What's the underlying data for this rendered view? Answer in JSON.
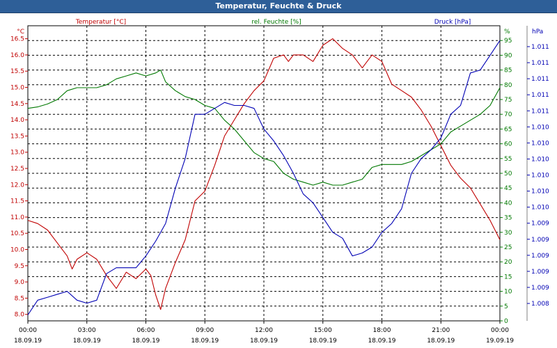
{
  "window": {
    "title": "Temperatur, Feuchte & Druck"
  },
  "colors": {
    "temperature": "#c00000",
    "humidity": "#007800",
    "pressure": "#0000b4",
    "title_bg": "#2e5f98"
  },
  "chart_data": {
    "type": "line",
    "title": "Temperatur, Feuchte & Druck",
    "grid": true,
    "x_ticks": [
      {
        "time": "00:00",
        "date": "18.09.19"
      },
      {
        "time": "03:00",
        "date": "18.09.19"
      },
      {
        "time": "06:00",
        "date": "18.09.19"
      },
      {
        "time": "09:00",
        "date": "18.09.19"
      },
      {
        "time": "12:00",
        "date": "18.09.19"
      },
      {
        "time": "15:00",
        "date": "18.09.19"
      },
      {
        "time": "18:00",
        "date": "18.09.19"
      },
      {
        "time": "21:00",
        "date": "18.09.19"
      },
      {
        "time": "00:00",
        "date": "19.09.19"
      }
    ],
    "xlim": [
      0,
      24
    ],
    "axes": {
      "temperature": {
        "label": "Temperatur [°C]",
        "unit": "°C",
        "ylim": [
          7.8,
          16.9
        ],
        "ticks": [
          "8.0",
          "8.5",
          "9.0",
          "9.5",
          "10.0",
          "10.5",
          "11.0",
          "11.5",
          "12.0",
          "12.5",
          "13.0",
          "13.5",
          "14.0",
          "14.5",
          "15.0",
          "15.5",
          "16.0",
          "16.5"
        ]
      },
      "humidity": {
        "label": "rel. Feuchte [%]",
        "unit": "%",
        "ylim": [
          0,
          100
        ],
        "ticks": [
          "0",
          "5",
          "10",
          "15",
          "20",
          "25",
          "30",
          "35",
          "40",
          "45",
          "50",
          "55",
          "60",
          "65",
          "70",
          "75",
          "80",
          "85",
          "90",
          "95"
        ]
      },
      "pressure": {
        "label": "Druck [hPa]",
        "unit": "hPa",
        "ylim": [
          0,
          100
        ],
        "ticks": [
          "1.008",
          "1.009",
          "1.009",
          "1.009",
          "1.009",
          "1.009",
          "1.010",
          "1.010",
          "1.010",
          "1.010",
          "1.010",
          "1.010",
          "1.011",
          "1.011",
          "1.011",
          "1.011",
          "1.011"
        ]
      }
    },
    "series": [
      {
        "name": "Temperatur [°C]",
        "axis": "temperature",
        "x": [
          0,
          0.5,
          1,
          1.5,
          2,
          2.25,
          2.5,
          3,
          3.5,
          4,
          4.5,
          5,
          5.5,
          6,
          6.25,
          6.5,
          6.75,
          7,
          7.5,
          8,
          8.5,
          9,
          9.5,
          10,
          10.5,
          11,
          11.5,
          12,
          12.5,
          13,
          13.25,
          13.5,
          14,
          14.5,
          15,
          15.5,
          16,
          16.5,
          17,
          17.5,
          18,
          18.5,
          19,
          19.5,
          20,
          20.5,
          21,
          21.5,
          22,
          22.5,
          23,
          23.5,
          24
        ],
        "y": [
          10.9,
          10.8,
          10.6,
          10.2,
          9.8,
          9.4,
          9.7,
          9.9,
          9.7,
          9.2,
          8.8,
          9.3,
          9.1,
          9.4,
          9.2,
          8.6,
          8.15,
          8.8,
          9.6,
          10.3,
          11.5,
          11.8,
          12.6,
          13.5,
          14.0,
          14.5,
          14.9,
          15.2,
          15.9,
          16.0,
          15.8,
          16.0,
          16.0,
          15.8,
          16.3,
          16.5,
          16.2,
          16.0,
          15.6,
          16.0,
          15.8,
          15.1,
          14.9,
          14.7,
          14.3,
          13.8,
          13.2,
          12.6,
          12.2,
          11.9,
          11.4,
          10.9,
          10.3
        ]
      },
      {
        "name": "rel. Feuchte [%]",
        "axis": "humidity",
        "x": [
          0,
          0.5,
          1,
          1.5,
          2,
          2.5,
          3,
          3.5,
          4,
          4.5,
          5,
          5.5,
          6,
          6.5,
          6.75,
          7,
          7.5,
          8,
          8.5,
          9,
          9.5,
          10,
          10.5,
          11,
          11.5,
          12,
          12.5,
          13,
          13.5,
          14,
          14.5,
          15,
          15.5,
          16,
          16.5,
          17,
          17.5,
          18,
          18.5,
          19,
          19.5,
          20,
          20.5,
          21,
          21.5,
          22,
          22.5,
          23,
          23.5,
          24
        ],
        "y": [
          72,
          72.5,
          73.5,
          75,
          78,
          79,
          79,
          79,
          80,
          82,
          83,
          84,
          83,
          84,
          85,
          81,
          78,
          76,
          75,
          73,
          72,
          68,
          65,
          61,
          57,
          55,
          54,
          50,
          48,
          47,
          46,
          47,
          46,
          46,
          47,
          48,
          52,
          53,
          53,
          53,
          54,
          56,
          58,
          60,
          64,
          66,
          68,
          70,
          73,
          79
        ]
      },
      {
        "name": "Druck [hPa]",
        "axis": "pressure",
        "x": [
          0,
          0.5,
          1,
          1.5,
          2,
          2.5,
          3,
          3.5,
          4,
          4.5,
          5,
          5.5,
          6,
          6.5,
          7,
          7.5,
          8,
          8.5,
          9,
          9.5,
          10,
          10.5,
          11,
          11.5,
          12,
          12.5,
          13,
          13.5,
          14,
          14.5,
          15,
          15.5,
          16,
          16.5,
          17,
          17.5,
          18,
          18.5,
          19,
          19.5,
          20,
          20.5,
          21,
          21.5,
          22,
          22.5,
          23,
          23.5,
          24
        ],
        "y": [
          2,
          7,
          8,
          9,
          10,
          7,
          6,
          7,
          16,
          18,
          18,
          18,
          22,
          27,
          33,
          45,
          55,
          70,
          70,
          72,
          74,
          73,
          73,
          72,
          65,
          61,
          56,
          50,
          43,
          40,
          35,
          30,
          28,
          22,
          23,
          25,
          30,
          33,
          38,
          50,
          55,
          58,
          62,
          70,
          73,
          84,
          85,
          90,
          95
        ]
      }
    ]
  }
}
